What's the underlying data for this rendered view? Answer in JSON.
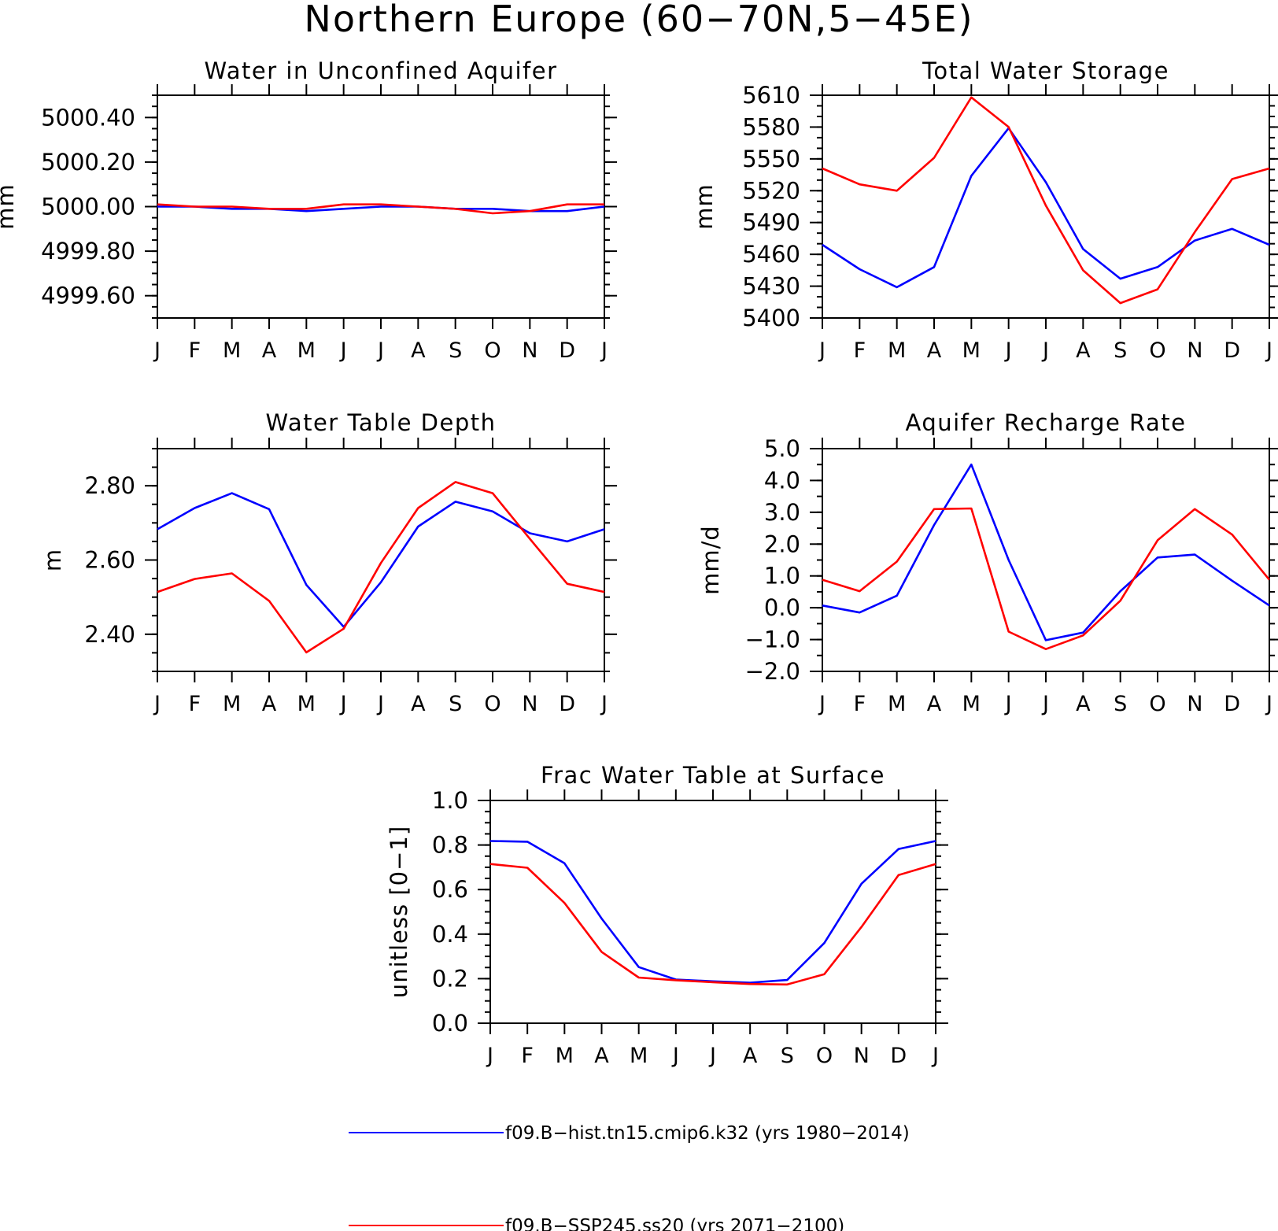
{
  "page": {
    "title": "Northern Europe (60−70N,5−45E)"
  },
  "colors": {
    "hist": "#0000ff",
    "ssp": "#ff0000",
    "axis": "#000000"
  },
  "legend": [
    {
      "label": "f09.B−hist.tn15.cmip6.k32 (yrs 1980−2014)",
      "color": "#0000ff"
    },
    {
      "label": "f09.B−SSP245.ss20 (yrs 2071−2100)",
      "color": "#ff0000"
    }
  ],
  "chart_data": [
    {
      "type": "line",
      "title": "Water in Unconfined Aquifer",
      "ylabel": "mm",
      "categories": [
        "J",
        "F",
        "M",
        "A",
        "M",
        "J",
        "J",
        "A",
        "S",
        "O",
        "N",
        "D",
        "J"
      ],
      "ylim": [
        4999.5,
        5000.5
      ],
      "yticks": [
        4999.6,
        4999.8,
        5000.0,
        5000.2,
        5000.4
      ],
      "ytick_labels": [
        "4999.60",
        "4999.80",
        "5000.00",
        "5000.20",
        "5000.40"
      ],
      "minor_step": 0.05,
      "series": [
        {
          "key": "hist",
          "values": [
            5000.0,
            5000.0,
            4999.99,
            4999.99,
            4999.98,
            4999.99,
            5000.0,
            5000.0,
            4999.99,
            4999.99,
            4999.98,
            4999.98,
            5000.0
          ]
        },
        {
          "key": "ssp",
          "values": [
            5000.01,
            5000.0,
            5000.0,
            4999.99,
            4999.99,
            5000.01,
            5000.01,
            5000.0,
            4999.99,
            4999.97,
            4999.98,
            5000.01,
            5000.01
          ]
        }
      ]
    },
    {
      "type": "line",
      "title": "Total Water Storage",
      "ylabel": "mm",
      "categories": [
        "J",
        "F",
        "M",
        "A",
        "M",
        "J",
        "J",
        "A",
        "S",
        "O",
        "N",
        "D",
        "J"
      ],
      "ylim": [
        5400,
        5610
      ],
      "yticks": [
        5400,
        5430,
        5460,
        5490,
        5520,
        5550,
        5580,
        5610
      ],
      "ytick_labels": [
        "5400",
        "5430",
        "5460",
        "5490",
        "5520",
        "5550",
        "5580",
        "5610"
      ],
      "minor_step": 10,
      "series": [
        {
          "key": "hist",
          "values": [
            5469,
            5446,
            5429,
            5448,
            5534,
            5579,
            5528,
            5465,
            5437,
            5448,
            5473,
            5484,
            5469
          ]
        },
        {
          "key": "ssp",
          "values": [
            5541,
            5526,
            5520,
            5551,
            5608,
            5580,
            5506,
            5445,
            5414,
            5427,
            5481,
            5531,
            5541
          ]
        }
      ]
    },
    {
      "type": "line",
      "title": "Water Table Depth",
      "ylabel": "m",
      "categories": [
        "J",
        "F",
        "M",
        "A",
        "M",
        "J",
        "J",
        "A",
        "S",
        "O",
        "N",
        "D",
        "J"
      ],
      "ylim": [
        2.3,
        2.9
      ],
      "yticks": [
        2.4,
        2.6,
        2.8
      ],
      "ytick_labels": [
        "2.40",
        "2.60",
        "2.80"
      ],
      "minor_step": 0.05,
      "series": [
        {
          "key": "hist",
          "values": [
            2.683,
            2.74,
            2.78,
            2.737,
            2.533,
            2.42,
            2.54,
            2.69,
            2.757,
            2.731,
            2.672,
            2.65,
            2.683
          ]
        },
        {
          "key": "ssp",
          "values": [
            2.514,
            2.549,
            2.564,
            2.49,
            2.351,
            2.415,
            2.592,
            2.74,
            2.81,
            2.78,
            2.657,
            2.536,
            2.514
          ]
        }
      ]
    },
    {
      "type": "line",
      "title": "Aquifer Recharge Rate",
      "ylabel": "mm/d",
      "categories": [
        "J",
        "F",
        "M",
        "A",
        "M",
        "J",
        "J",
        "A",
        "S",
        "O",
        "N",
        "D",
        "J"
      ],
      "ylim": [
        -2.0,
        5.0
      ],
      "yticks": [
        -2,
        -1,
        0,
        1,
        2,
        3,
        4,
        5
      ],
      "ytick_labels": [
        "−2.0",
        "−1.0",
        "0.0",
        "1.0",
        "2.0",
        "3.0",
        "4.0",
        "5.0"
      ],
      "minor_step": 0.5,
      "series": [
        {
          "key": "hist",
          "values": [
            0.07,
            -0.15,
            0.38,
            2.6,
            4.5,
            1.5,
            -1.02,
            -0.78,
            0.52,
            1.58,
            1.67,
            0.85,
            0.07
          ]
        },
        {
          "key": "ssp",
          "values": [
            0.88,
            0.52,
            1.45,
            3.1,
            3.12,
            -0.75,
            -1.3,
            -0.87,
            0.22,
            2.12,
            3.1,
            2.3,
            0.88
          ]
        }
      ]
    },
    {
      "type": "line",
      "title": "Frac Water Table at Surface",
      "ylabel": "unitless [0−1]",
      "categories": [
        "J",
        "F",
        "M",
        "A",
        "M",
        "J",
        "J",
        "A",
        "S",
        "O",
        "N",
        "D",
        "J"
      ],
      "ylim": [
        0.0,
        1.0
      ],
      "yticks": [
        0,
        0.2,
        0.4,
        0.6,
        0.8,
        1.0
      ],
      "ytick_labels": [
        "0.0",
        "0.2",
        "0.4",
        "0.6",
        "0.8",
        "1.0"
      ],
      "minor_step": 0.05,
      "series": [
        {
          "key": "hist",
          "values": [
            0.818,
            0.815,
            0.718,
            0.47,
            0.252,
            0.196,
            0.188,
            0.182,
            0.194,
            0.36,
            0.626,
            0.782,
            0.818
          ]
        },
        {
          "key": "ssp",
          "values": [
            0.715,
            0.698,
            0.54,
            0.32,
            0.205,
            0.193,
            0.184,
            0.176,
            0.174,
            0.22,
            0.432,
            0.665,
            0.715
          ]
        }
      ]
    }
  ]
}
